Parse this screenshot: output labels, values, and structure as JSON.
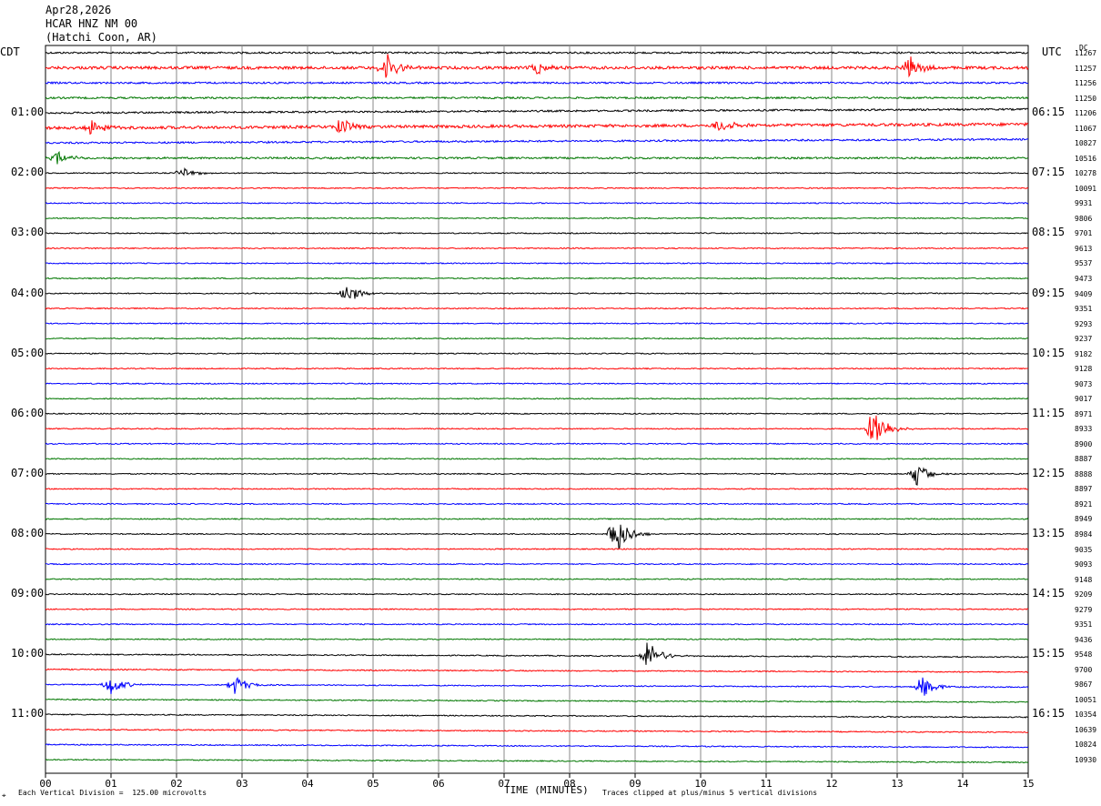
{
  "header": {
    "date": "Apr28,2026",
    "station": "HCAR HNZ NM 00",
    "location": "(Hatchi Coon, AR)"
  },
  "left_timezone": "CDT",
  "right_timezone": "UTC",
  "dc_label": "DC",
  "footer": {
    "scale_note": "Each Vertical Division =  125.00 microvolts",
    "xlabel": "TIME (MINUTES)",
    "clip_note": "Traces clipped at plus/minus 5 vertical divisions",
    "corner_mark": "⌖"
  },
  "chart_data": {
    "type": "line",
    "title": "",
    "xlabel": "TIME (MINUTES)",
    "ylabel": "",
    "xlim": [
      0,
      15
    ],
    "x_ticks": [
      "00",
      "01",
      "02",
      "03",
      "04",
      "05",
      "06",
      "07",
      "08",
      "09",
      "10",
      "11",
      "12",
      "13",
      "14",
      "15"
    ],
    "left_time_labels": [
      "01:00",
      "02:00",
      "03:00",
      "04:00",
      "05:00",
      "06:00",
      "07:00",
      "08:00",
      "09:00",
      "10:00",
      "11:00"
    ],
    "right_time_labels": [
      "06:15",
      "07:15",
      "08:15",
      "09:15",
      "10:15",
      "11:15",
      "12:15",
      "13:15",
      "14:15",
      "15:15",
      "16:15"
    ],
    "trace_colors": [
      "#000000",
      "#ff0000",
      "#0000ff",
      "#007700"
    ],
    "grid": true,
    "dc_values": [
      "11267",
      "11257",
      "11256",
      "11250",
      "11206",
      "11067",
      "10827",
      "10516",
      "10278",
      "10091",
      "9931",
      "9806",
      "9701",
      "9613",
      "9537",
      "9473",
      "9409",
      "9351",
      "9293",
      "9237",
      "9182",
      "9128",
      "9073",
      "9017",
      "8971",
      "8933",
      "8900",
      "8887",
      "8888",
      "8897",
      "8921",
      "8949",
      "8984",
      "9035",
      "9093",
      "9148",
      "9209",
      "9279",
      "9351",
      "9436",
      "9548",
      "9700",
      "9867",
      "10051",
      "10354",
      "10639",
      "10824",
      "10930"
    ],
    "events": [
      {
        "trace": 1,
        "minute": 5.2,
        "amplitude": 0.7
      },
      {
        "trace": 1,
        "minute": 7.5,
        "amplitude": 0.3
      },
      {
        "trace": 1,
        "minute": 13.2,
        "amplitude": 0.5
      },
      {
        "trace": 5,
        "minute": 0.7,
        "amplitude": 0.35
      },
      {
        "trace": 5,
        "minute": 4.5,
        "amplitude": 0.4
      },
      {
        "trace": 5,
        "minute": 10.3,
        "amplitude": 0.35
      },
      {
        "trace": 7,
        "minute": 0.2,
        "amplitude": 0.3
      },
      {
        "trace": 8,
        "minute": 2.1,
        "amplitude": 0.25
      },
      {
        "trace": 16,
        "minute": 4.6,
        "amplitude": 0.5
      },
      {
        "trace": 25,
        "minute": 12.65,
        "amplitude": 1.0
      },
      {
        "trace": 28,
        "minute": 13.3,
        "amplitude": 0.55
      },
      {
        "trace": 32,
        "minute": 8.7,
        "amplitude": 1.0
      },
      {
        "trace": 40,
        "minute": 9.2,
        "amplitude": 0.7
      },
      {
        "trace": 42,
        "minute": 1.0,
        "amplitude": 0.45
      },
      {
        "trace": 42,
        "minute": 2.9,
        "amplitude": 0.45
      },
      {
        "trace": 42,
        "minute": 13.4,
        "amplitude": 0.55
      }
    ]
  }
}
